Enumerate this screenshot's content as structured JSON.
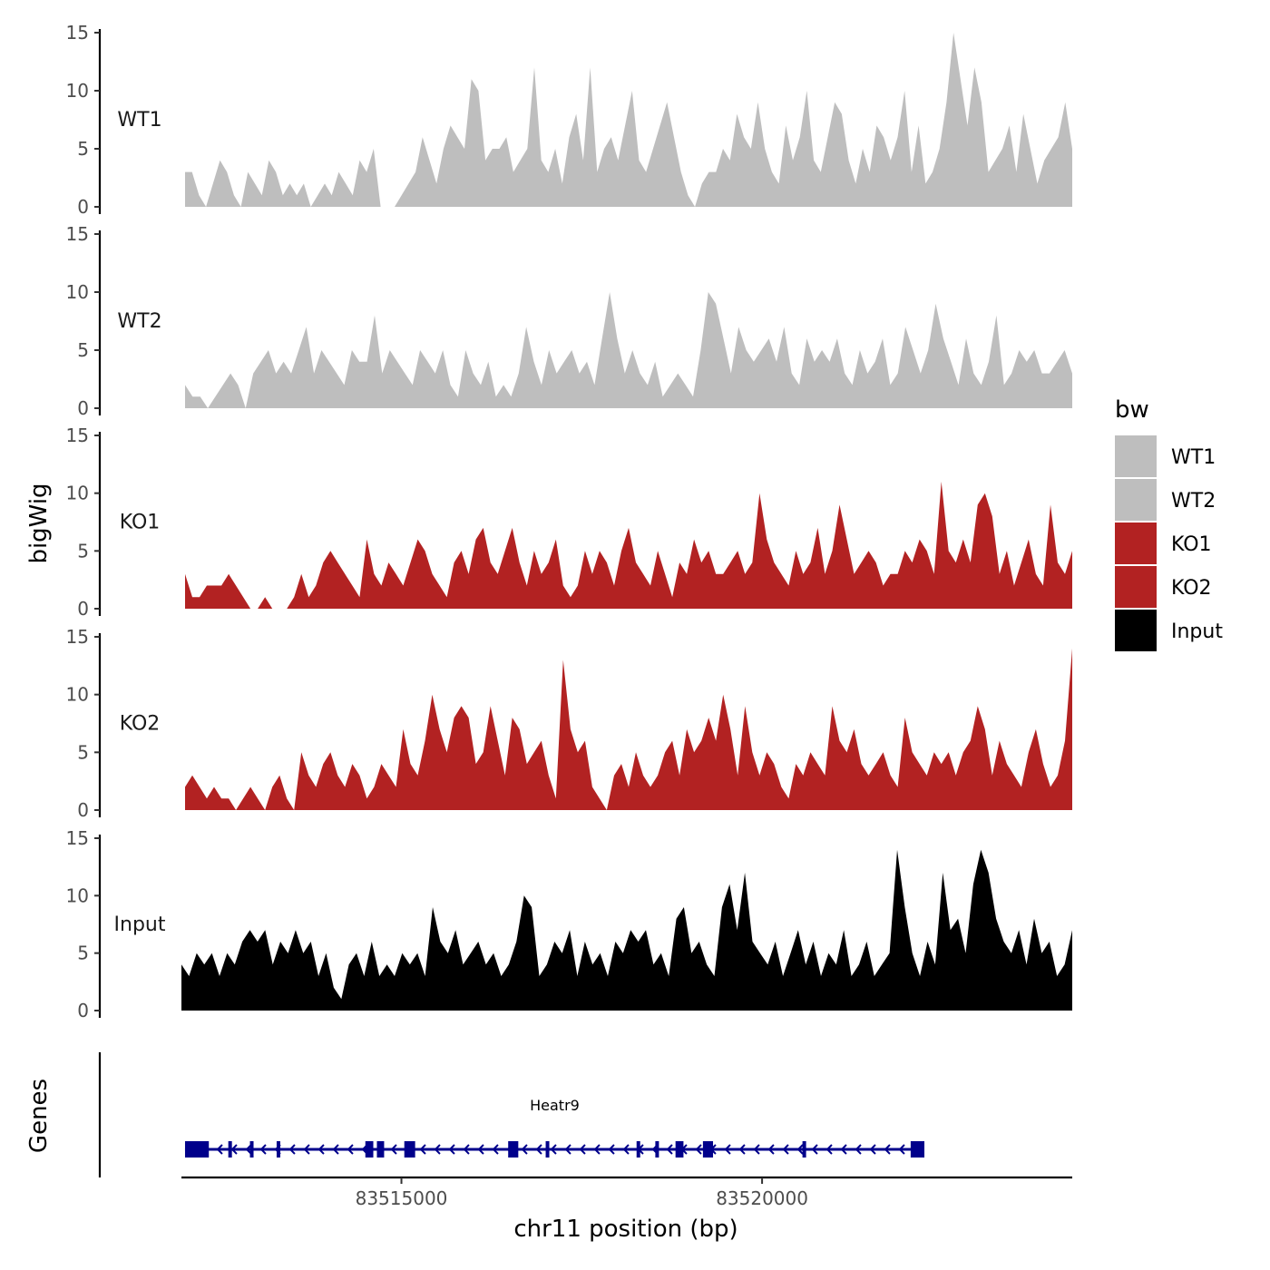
{
  "chart_data": {
    "type": "area",
    "ylabel": "bigWig",
    "xlabel": "chr11 position (bp)",
    "genes_label": "Genes",
    "x_range": [
      83511950,
      83524300
    ],
    "x_ticks": [
      83515000,
      83520000
    ],
    "x_tick_labels": [
      "83515000",
      "83520000"
    ],
    "ylim": [
      0,
      15
    ],
    "y_ticks": [
      0,
      5,
      10,
      15
    ],
    "y_tick_labels": [
      "0",
      "5",
      "10",
      "15"
    ],
    "legend": {
      "title": "bw",
      "items": [
        {
          "label": "WT1",
          "color": "#bebebe"
        },
        {
          "label": "WT2",
          "color": "#bebebe"
        },
        {
          "label": "KO1",
          "color": "#b22222"
        },
        {
          "label": "KO2",
          "color": "#b22222"
        },
        {
          "label": "Input",
          "color": "#000000"
        }
      ]
    },
    "series": [
      {
        "name": "WT1",
        "color": "#bebebe",
        "x_start": 83512000,
        "x_end": 83524300,
        "values": [
          3,
          3,
          1,
          0,
          2,
          4,
          3,
          1,
          0,
          3,
          2,
          1,
          4,
          3,
          1,
          2,
          1,
          2,
          0,
          1,
          2,
          1,
          3,
          2,
          1,
          4,
          3,
          5,
          0,
          0,
          0,
          1,
          2,
          3,
          6,
          4,
          2,
          5,
          7,
          6,
          5,
          11,
          10,
          4,
          5,
          5,
          6,
          3,
          4,
          5,
          12,
          4,
          3,
          5,
          2,
          6,
          8,
          4,
          12,
          3,
          5,
          6,
          4,
          7,
          10,
          4,
          3,
          5,
          7,
          9,
          6,
          3,
          1,
          0,
          2,
          3,
          3,
          5,
          4,
          8,
          6,
          5,
          9,
          5,
          3,
          2,
          7,
          4,
          6,
          10,
          4,
          3,
          6,
          9,
          8,
          4,
          2,
          5,
          3,
          7,
          6,
          4,
          6,
          10,
          3,
          7,
          2,
          3,
          5,
          9,
          15,
          11,
          7,
          12,
          9,
          3,
          4,
          5,
          7,
          3,
          8,
          5,
          2,
          4,
          5,
          6,
          9,
          5
        ]
      },
      {
        "name": "WT2",
        "color": "#bebebe",
        "x_start": 83512000,
        "x_end": 83524300,
        "values": [
          2,
          1,
          1,
          0,
          1,
          2,
          3,
          2,
          0,
          3,
          4,
          5,
          3,
          4,
          3,
          5,
          7,
          3,
          5,
          4,
          3,
          2,
          5,
          4,
          4,
          8,
          3,
          5,
          4,
          3,
          2,
          5,
          4,
          3,
          5,
          2,
          1,
          5,
          3,
          2,
          4,
          1,
          2,
          1,
          3,
          7,
          4,
          2,
          5,
          3,
          4,
          5,
          3,
          4,
          2,
          6,
          10,
          6,
          3,
          5,
          3,
          2,
          4,
          1,
          2,
          3,
          2,
          1,
          5,
          10,
          9,
          6,
          3,
          7,
          5,
          4,
          5,
          6,
          4,
          7,
          3,
          2,
          6,
          4,
          5,
          4,
          6,
          3,
          2,
          5,
          3,
          4,
          6,
          2,
          3,
          7,
          5,
          3,
          5,
          9,
          6,
          4,
          2,
          6,
          3,
          2,
          4,
          8,
          2,
          3,
          5,
          4,
          5,
          3,
          3,
          4,
          5,
          3
        ]
      },
      {
        "name": "KO1",
        "color": "#b22222",
        "x_start": 83512000,
        "x_end": 83524300,
        "values": [
          3,
          1,
          1,
          2,
          2,
          2,
          3,
          2,
          1,
          0,
          0,
          1,
          0,
          0,
          0,
          1,
          3,
          1,
          2,
          4,
          5,
          4,
          3,
          2,
          1,
          6,
          3,
          2,
          4,
          3,
          2,
          4,
          6,
          5,
          3,
          2,
          1,
          4,
          5,
          3,
          6,
          7,
          4,
          3,
          5,
          7,
          4,
          2,
          5,
          3,
          4,
          6,
          2,
          1,
          2,
          5,
          3,
          5,
          4,
          2,
          5,
          7,
          4,
          3,
          2,
          5,
          3,
          1,
          4,
          3,
          6,
          4,
          5,
          3,
          3,
          4,
          5,
          3,
          4,
          10,
          6,
          4,
          3,
          2,
          5,
          3,
          4,
          7,
          3,
          5,
          9,
          6,
          3,
          4,
          5,
          4,
          2,
          3,
          3,
          5,
          4,
          6,
          5,
          3,
          11,
          5,
          4,
          6,
          4,
          9,
          10,
          8,
          3,
          5,
          2,
          4,
          6,
          3,
          2,
          9,
          4,
          3,
          5
        ]
      },
      {
        "name": "KO2",
        "color": "#b22222",
        "x_start": 83512000,
        "x_end": 83524300,
        "values": [
          2,
          3,
          2,
          1,
          2,
          1,
          1,
          0,
          1,
          2,
          1,
          0,
          2,
          3,
          1,
          0,
          5,
          3,
          2,
          4,
          5,
          3,
          2,
          4,
          3,
          1,
          2,
          4,
          3,
          2,
          7,
          4,
          3,
          6,
          10,
          7,
          5,
          8,
          9,
          8,
          4,
          5,
          9,
          6,
          3,
          8,
          7,
          4,
          5,
          6,
          3,
          1,
          13,
          7,
          5,
          6,
          2,
          1,
          0,
          3,
          4,
          2,
          5,
          3,
          2,
          3,
          5,
          6,
          3,
          7,
          5,
          6,
          8,
          6,
          10,
          7,
          3,
          9,
          5,
          3,
          5,
          4,
          2,
          1,
          4,
          3,
          5,
          4,
          3,
          9,
          6,
          5,
          7,
          4,
          3,
          4,
          5,
          3,
          2,
          8,
          5,
          4,
          3,
          5,
          4,
          5,
          3,
          5,
          6,
          9,
          7,
          3,
          6,
          4,
          3,
          2,
          5,
          7,
          4,
          2,
          3,
          6,
          14
        ]
      },
      {
        "name": "Input",
        "color": "#000000",
        "x_start": 83511950,
        "x_end": 83524300,
        "values": [
          4,
          3,
          5,
          4,
          5,
          3,
          5,
          4,
          6,
          7,
          6,
          7,
          4,
          6,
          5,
          7,
          5,
          6,
          3,
          5,
          2,
          1,
          4,
          5,
          3,
          6,
          3,
          4,
          3,
          5,
          4,
          5,
          3,
          9,
          6,
          5,
          7,
          4,
          5,
          6,
          4,
          5,
          3,
          4,
          6,
          10,
          9,
          3,
          4,
          6,
          5,
          7,
          3,
          6,
          4,
          5,
          3,
          6,
          5,
          7,
          6,
          7,
          4,
          5,
          3,
          8,
          9,
          5,
          6,
          4,
          3,
          9,
          11,
          7,
          12,
          6,
          5,
          4,
          6,
          3,
          5,
          7,
          4,
          6,
          3,
          5,
          4,
          7,
          3,
          4,
          6,
          3,
          4,
          5,
          14,
          9,
          5,
          3,
          6,
          4,
          12,
          7,
          8,
          5,
          11,
          14,
          12,
          8,
          6,
          5,
          7,
          4,
          8,
          5,
          6,
          3,
          4,
          7
        ]
      }
    ],
    "genes": [
      {
        "name": "Heatr9",
        "strand": "-",
        "start": 83512000,
        "end": 83522250,
        "exons": [
          [
            83512000,
            83512330
          ],
          [
            83512600,
            83512650
          ],
          [
            83512900,
            83512950
          ],
          [
            83513270,
            83513320
          ],
          [
            83514500,
            83514610
          ],
          [
            83514660,
            83514760
          ],
          [
            83515040,
            83515190
          ],
          [
            83516480,
            83516620
          ],
          [
            83517000,
            83517050
          ],
          [
            83518260,
            83518310
          ],
          [
            83518520,
            83518570
          ],
          [
            83518800,
            83518910
          ],
          [
            83519180,
            83519320
          ],
          [
            83520560,
            83520610
          ],
          [
            83522060,
            83522250
          ]
        ]
      }
    ]
  }
}
